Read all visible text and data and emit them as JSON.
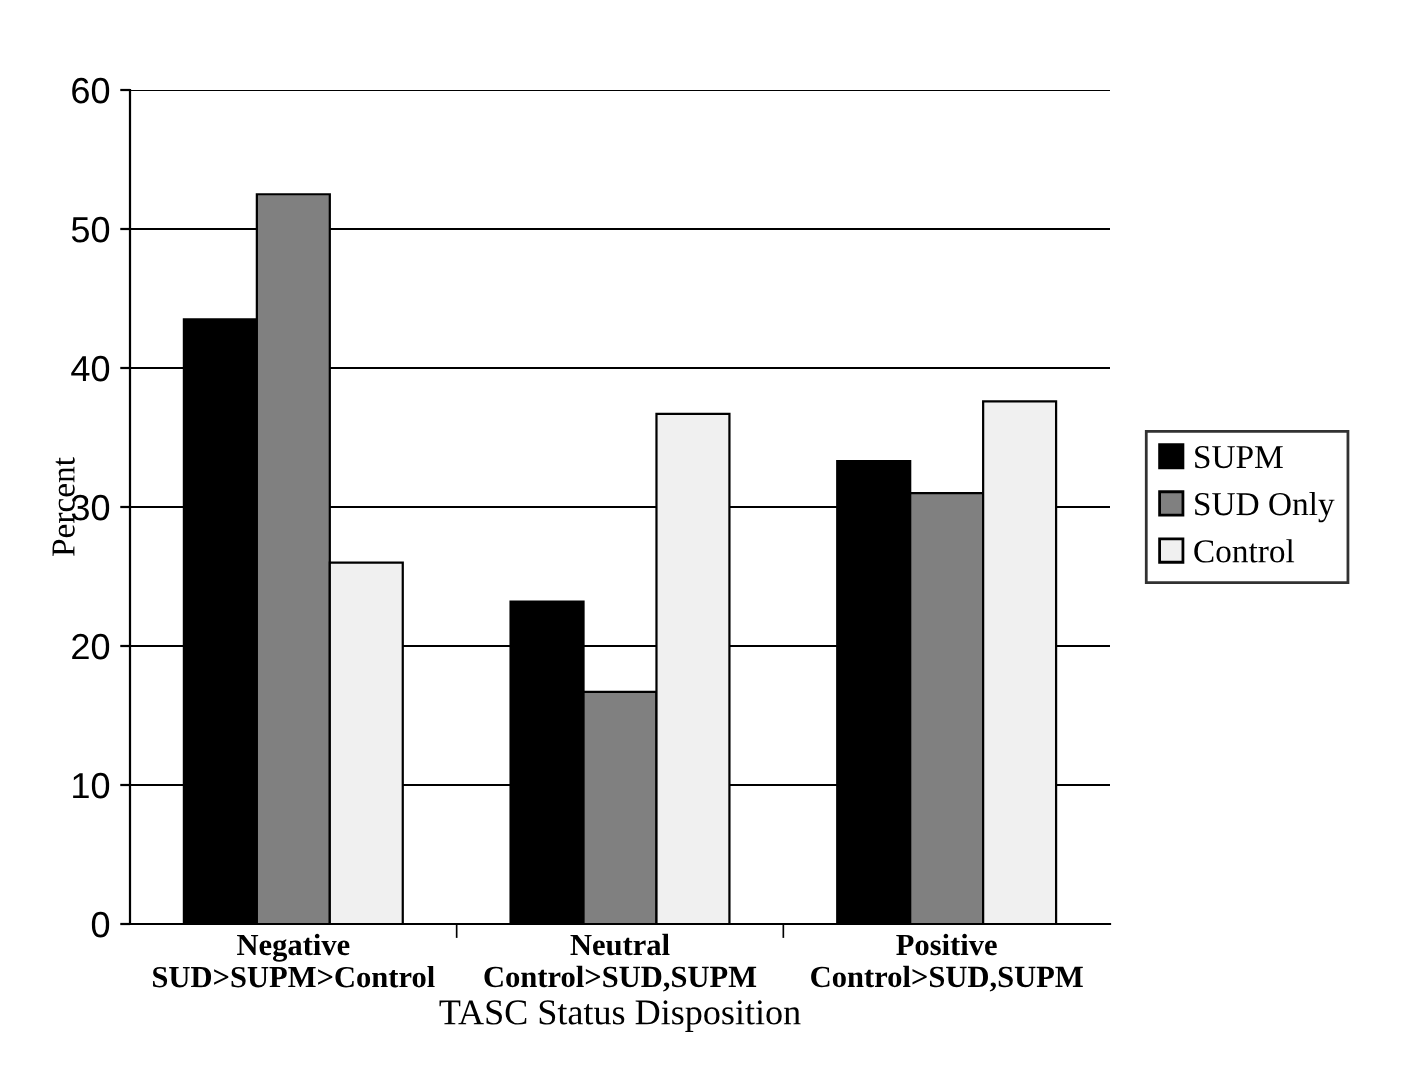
{
  "chart_data": {
    "type": "bar",
    "categories": [
      "Negative\nSUD>SUPM>Control",
      "Neutral\nControl>SUD,SUPM",
      "Positive\nControl>SUD,SUPM"
    ],
    "series": [
      {
        "name": "SUPM",
        "color": "#000000",
        "values": [
          43.5,
          23.2,
          33.3
        ]
      },
      {
        "name": "SUD Only",
        "color": "#808080",
        "values": [
          52.5,
          16.7,
          31.0
        ]
      },
      {
        "name": "Control",
        "color": "#f0f0f0",
        "values": [
          26.0,
          36.7,
          37.6
        ]
      }
    ],
    "xlabel": "TASC Status Disposition",
    "ylabel": "Percent",
    "ylim": [
      0,
      60
    ],
    "yticks": [
      0,
      10,
      20,
      30,
      40,
      50,
      60
    ],
    "grid": "y",
    "legend": "right"
  }
}
